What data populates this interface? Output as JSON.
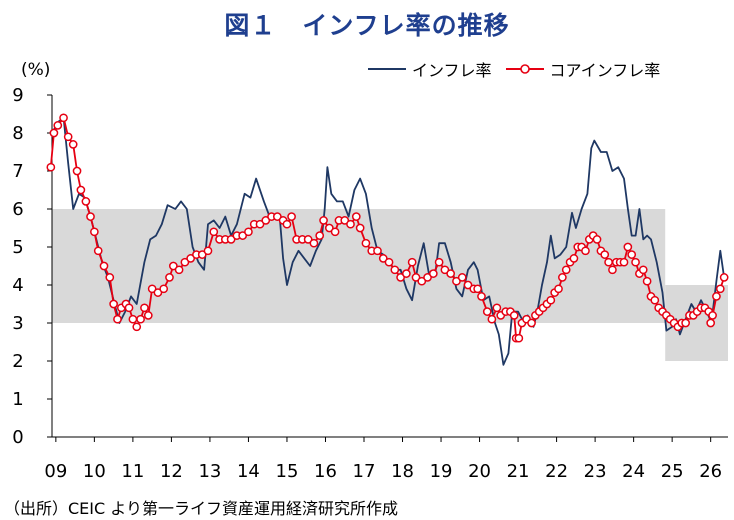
{
  "title": "図１　インフレ率の推移",
  "unit_label": "(%)",
  "source": "（出所）CEIC より第一ライフ資産運用経済研究所作成",
  "colors": {
    "title": "#1f3f8f",
    "inflation": "#1f3864",
    "core": "#e60012",
    "core_marker_fill": "#ffffff",
    "band": "#d9d9d9"
  },
  "legend": [
    {
      "name": "インフレ率",
      "style": "line",
      "color": "#1f3864"
    },
    {
      "name": "コアインフレ率",
      "style": "line-marker",
      "color": "#e60012"
    }
  ],
  "chart_data": {
    "type": "line",
    "title": "図１　インフレ率の推移",
    "ylabel": "(%)",
    "ylim": [
      0,
      9
    ],
    "yticks": [
      0,
      1,
      2,
      3,
      4,
      5,
      6,
      7,
      8,
      9
    ],
    "xlim": [
      2009.0,
      2026.55
    ],
    "xtick_labels": [
      "09",
      "10",
      "11",
      "12",
      "13",
      "14",
      "15",
      "16",
      "17",
      "18",
      "19",
      "20",
      "21",
      "22",
      "23",
      "24",
      "25",
      "26"
    ],
    "xtick_values": [
      2009.1,
      2010.1,
      2011.1,
      2012.1,
      2013.1,
      2014.1,
      2015.1,
      2016.1,
      2017.1,
      2018.1,
      2019.1,
      2020.1,
      2021.1,
      2022.1,
      2023.1,
      2024.1,
      2025.1,
      2026.1
    ],
    "grid": false,
    "legend_position": "top-right",
    "target_band": [
      {
        "from": 2009.0,
        "to": 2024.92,
        "low": 3,
        "high": 6
      },
      {
        "from": 2024.92,
        "to": 2026.55,
        "low": 2,
        "high": 4
      }
    ],
    "series": [
      {
        "name": "インフレ率",
        "points": [
          [
            2009.0,
            8.0
          ],
          [
            2009.17,
            8.3
          ],
          [
            2009.3,
            8.4
          ],
          [
            2009.42,
            7.2
          ],
          [
            2009.55,
            6.0
          ],
          [
            2009.7,
            6.4
          ],
          [
            2009.85,
            6.3
          ],
          [
            2010.0,
            5.8
          ],
          [
            2010.15,
            5.2
          ],
          [
            2010.3,
            4.6
          ],
          [
            2010.45,
            4.2
          ],
          [
            2010.6,
            3.6
          ],
          [
            2010.75,
            3.0
          ],
          [
            2010.9,
            3.3
          ],
          [
            2011.05,
            3.7
          ],
          [
            2011.2,
            3.5
          ],
          [
            2011.4,
            4.6
          ],
          [
            2011.55,
            5.2
          ],
          [
            2011.7,
            5.3
          ],
          [
            2011.85,
            5.6
          ],
          [
            2012.0,
            6.1
          ],
          [
            2012.2,
            6.0
          ],
          [
            2012.35,
            6.2
          ],
          [
            2012.5,
            6.0
          ],
          [
            2012.65,
            5.0
          ],
          [
            2012.8,
            4.6
          ],
          [
            2012.95,
            4.4
          ],
          [
            2013.05,
            5.6
          ],
          [
            2013.2,
            5.7
          ],
          [
            2013.35,
            5.5
          ],
          [
            2013.5,
            5.8
          ],
          [
            2013.65,
            5.3
          ],
          [
            2013.8,
            5.6
          ],
          [
            2014.0,
            6.4
          ],
          [
            2014.15,
            6.3
          ],
          [
            2014.3,
            6.8
          ],
          [
            2014.5,
            6.2
          ],
          [
            2014.65,
            5.8
          ],
          [
            2014.8,
            5.8
          ],
          [
            2014.92,
            5.7
          ],
          [
            2015.0,
            4.7
          ],
          [
            2015.1,
            4.0
          ],
          [
            2015.25,
            4.6
          ],
          [
            2015.4,
            4.9
          ],
          [
            2015.55,
            4.7
          ],
          [
            2015.7,
            4.5
          ],
          [
            2015.85,
            4.9
          ],
          [
            2016.0,
            5.2
          ],
          [
            2016.08,
            6.0
          ],
          [
            2016.15,
            7.1
          ],
          [
            2016.25,
            6.4
          ],
          [
            2016.4,
            6.2
          ],
          [
            2016.55,
            6.2
          ],
          [
            2016.7,
            5.8
          ],
          [
            2016.85,
            6.5
          ],
          [
            2017.0,
            6.8
          ],
          [
            2017.15,
            6.4
          ],
          [
            2017.3,
            5.5
          ],
          [
            2017.45,
            4.9
          ],
          [
            2017.6,
            4.8
          ],
          [
            2017.75,
            4.6
          ],
          [
            2017.9,
            4.4
          ],
          [
            2018.05,
            4.4
          ],
          [
            2018.2,
            3.9
          ],
          [
            2018.35,
            3.6
          ],
          [
            2018.5,
            4.5
          ],
          [
            2018.65,
            5.1
          ],
          [
            2018.8,
            4.2
          ],
          [
            2018.95,
            4.3
          ],
          [
            2019.05,
            5.1
          ],
          [
            2019.2,
            5.1
          ],
          [
            2019.35,
            4.6
          ],
          [
            2019.5,
            3.9
          ],
          [
            2019.65,
            3.7
          ],
          [
            2019.8,
            4.4
          ],
          [
            2019.95,
            4.6
          ],
          [
            2020.05,
            4.4
          ],
          [
            2020.2,
            3.6
          ],
          [
            2020.35,
            3.7
          ],
          [
            2020.5,
            3.0
          ],
          [
            2020.6,
            2.7
          ],
          [
            2020.72,
            1.9
          ],
          [
            2020.85,
            2.2
          ],
          [
            2020.95,
            3.3
          ],
          [
            2021.1,
            3.3
          ],
          [
            2021.25,
            3.0
          ],
          [
            2021.35,
            3.2
          ],
          [
            2021.5,
            2.9
          ],
          [
            2021.6,
            3.3
          ],
          [
            2021.72,
            4.0
          ],
          [
            2021.85,
            4.6
          ],
          [
            2021.95,
            5.3
          ],
          [
            2022.05,
            4.7
          ],
          [
            2022.2,
            4.8
          ],
          [
            2022.35,
            5.0
          ],
          [
            2022.5,
            5.9
          ],
          [
            2022.6,
            5.5
          ],
          [
            2022.75,
            6.0
          ],
          [
            2022.9,
            6.4
          ],
          [
            2023.0,
            7.6
          ],
          [
            2023.08,
            7.8
          ],
          [
            2023.25,
            7.5
          ],
          [
            2023.4,
            7.5
          ],
          [
            2023.55,
            7.0
          ],
          [
            2023.7,
            7.1
          ],
          [
            2023.85,
            6.8
          ],
          [
            2023.95,
            6.0
          ],
          [
            2024.05,
            5.3
          ],
          [
            2024.15,
            5.3
          ],
          [
            2024.25,
            6.0
          ],
          [
            2024.35,
            5.2
          ],
          [
            2024.45,
            5.3
          ],
          [
            2024.55,
            5.2
          ],
          [
            2024.7,
            4.6
          ],
          [
            2024.85,
            3.8
          ],
          [
            2024.95,
            2.8
          ],
          [
            2025.1,
            2.9
          ],
          [
            2025.2,
            3.1
          ],
          [
            2025.3,
            2.7
          ],
          [
            2025.45,
            3.1
          ],
          [
            2025.6,
            3.5
          ],
          [
            2025.72,
            3.3
          ],
          [
            2025.85,
            3.6
          ],
          [
            2026.0,
            3.3
          ],
          [
            2026.12,
            3.0
          ],
          [
            2026.25,
            4.1
          ],
          [
            2026.35,
            4.9
          ],
          [
            2026.45,
            4.2
          ]
        ]
      },
      {
        "name": "コアインフレ率",
        "points": [
          [
            2008.97,
            7.1
          ],
          [
            2009.05,
            8.0
          ],
          [
            2009.15,
            8.2
          ],
          [
            2009.3,
            8.4
          ],
          [
            2009.42,
            7.9
          ],
          [
            2009.55,
            7.7
          ],
          [
            2009.65,
            7.0
          ],
          [
            2009.75,
            6.5
          ],
          [
            2009.88,
            6.2
          ],
          [
            2010.0,
            5.8
          ],
          [
            2010.1,
            5.4
          ],
          [
            2010.2,
            4.9
          ],
          [
            2010.35,
            4.5
          ],
          [
            2010.5,
            4.2
          ],
          [
            2010.6,
            3.5
          ],
          [
            2010.7,
            3.1
          ],
          [
            2010.8,
            3.4
          ],
          [
            2010.92,
            3.5
          ],
          [
            2011.0,
            3.4
          ],
          [
            2011.1,
            3.1
          ],
          [
            2011.2,
            2.9
          ],
          [
            2011.3,
            3.1
          ],
          [
            2011.4,
            3.4
          ],
          [
            2011.5,
            3.2
          ],
          [
            2011.6,
            3.9
          ],
          [
            2011.75,
            3.8
          ],
          [
            2011.9,
            3.9
          ],
          [
            2012.05,
            4.2
          ],
          [
            2012.15,
            4.5
          ],
          [
            2012.3,
            4.4
          ],
          [
            2012.45,
            4.6
          ],
          [
            2012.6,
            4.7
          ],
          [
            2012.75,
            4.8
          ],
          [
            2012.9,
            4.8
          ],
          [
            2013.05,
            4.9
          ],
          [
            2013.2,
            5.4
          ],
          [
            2013.35,
            5.2
          ],
          [
            2013.5,
            5.2
          ],
          [
            2013.65,
            5.2
          ],
          [
            2013.8,
            5.3
          ],
          [
            2013.95,
            5.3
          ],
          [
            2014.1,
            5.4
          ],
          [
            2014.25,
            5.6
          ],
          [
            2014.4,
            5.6
          ],
          [
            2014.55,
            5.7
          ],
          [
            2014.7,
            5.8
          ],
          [
            2014.85,
            5.8
          ],
          [
            2015.0,
            5.7
          ],
          [
            2015.1,
            5.6
          ],
          [
            2015.22,
            5.8
          ],
          [
            2015.35,
            5.2
          ],
          [
            2015.5,
            5.2
          ],
          [
            2015.65,
            5.2
          ],
          [
            2015.8,
            5.1
          ],
          [
            2015.95,
            5.3
          ],
          [
            2016.05,
            5.7
          ],
          [
            2016.2,
            5.5
          ],
          [
            2016.35,
            5.4
          ],
          [
            2016.45,
            5.7
          ],
          [
            2016.6,
            5.7
          ],
          [
            2016.75,
            5.6
          ],
          [
            2016.9,
            5.8
          ],
          [
            2017.0,
            5.5
          ],
          [
            2017.15,
            5.1
          ],
          [
            2017.3,
            4.9
          ],
          [
            2017.45,
            4.9
          ],
          [
            2017.6,
            4.7
          ],
          [
            2017.75,
            4.6
          ],
          [
            2017.9,
            4.4
          ],
          [
            2018.05,
            4.2
          ],
          [
            2018.2,
            4.3
          ],
          [
            2018.35,
            4.6
          ],
          [
            2018.45,
            4.2
          ],
          [
            2018.6,
            4.1
          ],
          [
            2018.75,
            4.2
          ],
          [
            2018.9,
            4.3
          ],
          [
            2019.05,
            4.6
          ],
          [
            2019.2,
            4.4
          ],
          [
            2019.35,
            4.3
          ],
          [
            2019.5,
            4.1
          ],
          [
            2019.65,
            4.2
          ],
          [
            2019.8,
            4.0
          ],
          [
            2019.95,
            3.9
          ],
          [
            2020.05,
            3.9
          ],
          [
            2020.15,
            3.7
          ],
          [
            2020.3,
            3.3
          ],
          [
            2020.42,
            3.1
          ],
          [
            2020.55,
            3.4
          ],
          [
            2020.65,
            3.2
          ],
          [
            2020.78,
            3.3
          ],
          [
            2020.9,
            3.3
          ],
          [
            2021.0,
            3.2
          ],
          [
            2021.05,
            2.6
          ],
          [
            2021.12,
            2.6
          ],
          [
            2021.2,
            3.0
          ],
          [
            2021.32,
            3.1
          ],
          [
            2021.45,
            3.0
          ],
          [
            2021.55,
            3.2
          ],
          [
            2021.65,
            3.3
          ],
          [
            2021.75,
            3.4
          ],
          [
            2021.85,
            3.5
          ],
          [
            2021.95,
            3.6
          ],
          [
            2022.05,
            3.8
          ],
          [
            2022.15,
            3.9
          ],
          [
            2022.25,
            4.2
          ],
          [
            2022.35,
            4.4
          ],
          [
            2022.45,
            4.6
          ],
          [
            2022.55,
            4.7
          ],
          [
            2022.65,
            5.0
          ],
          [
            2022.75,
            5.0
          ],
          [
            2022.85,
            4.9
          ],
          [
            2022.95,
            5.2
          ],
          [
            2023.05,
            5.3
          ],
          [
            2023.15,
            5.2
          ],
          [
            2023.25,
            4.9
          ],
          [
            2023.35,
            4.8
          ],
          [
            2023.45,
            4.6
          ],
          [
            2023.55,
            4.4
          ],
          [
            2023.65,
            4.6
          ],
          [
            2023.75,
            4.6
          ],
          [
            2023.85,
            4.6
          ],
          [
            2023.95,
            5.0
          ],
          [
            2024.05,
            4.8
          ],
          [
            2024.15,
            4.6
          ],
          [
            2024.25,
            4.3
          ],
          [
            2024.35,
            4.4
          ],
          [
            2024.45,
            4.1
          ],
          [
            2024.55,
            3.7
          ],
          [
            2024.65,
            3.6
          ],
          [
            2024.75,
            3.4
          ],
          [
            2024.85,
            3.3
          ],
          [
            2024.95,
            3.2
          ],
          [
            2025.05,
            3.1
          ],
          [
            2025.15,
            3.0
          ],
          [
            2025.25,
            2.9
          ],
          [
            2025.35,
            3.0
          ],
          [
            2025.45,
            3.0
          ],
          [
            2025.55,
            3.2
          ],
          [
            2025.65,
            3.2
          ],
          [
            2025.75,
            3.3
          ],
          [
            2025.85,
            3.4
          ],
          [
            2025.95,
            3.4
          ],
          [
            2026.05,
            3.3
          ],
          [
            2026.1,
            3.0
          ],
          [
            2026.15,
            3.2
          ],
          [
            2026.25,
            3.7
          ],
          [
            2026.35,
            3.9
          ],
          [
            2026.45,
            4.2
          ]
        ]
      }
    ]
  }
}
